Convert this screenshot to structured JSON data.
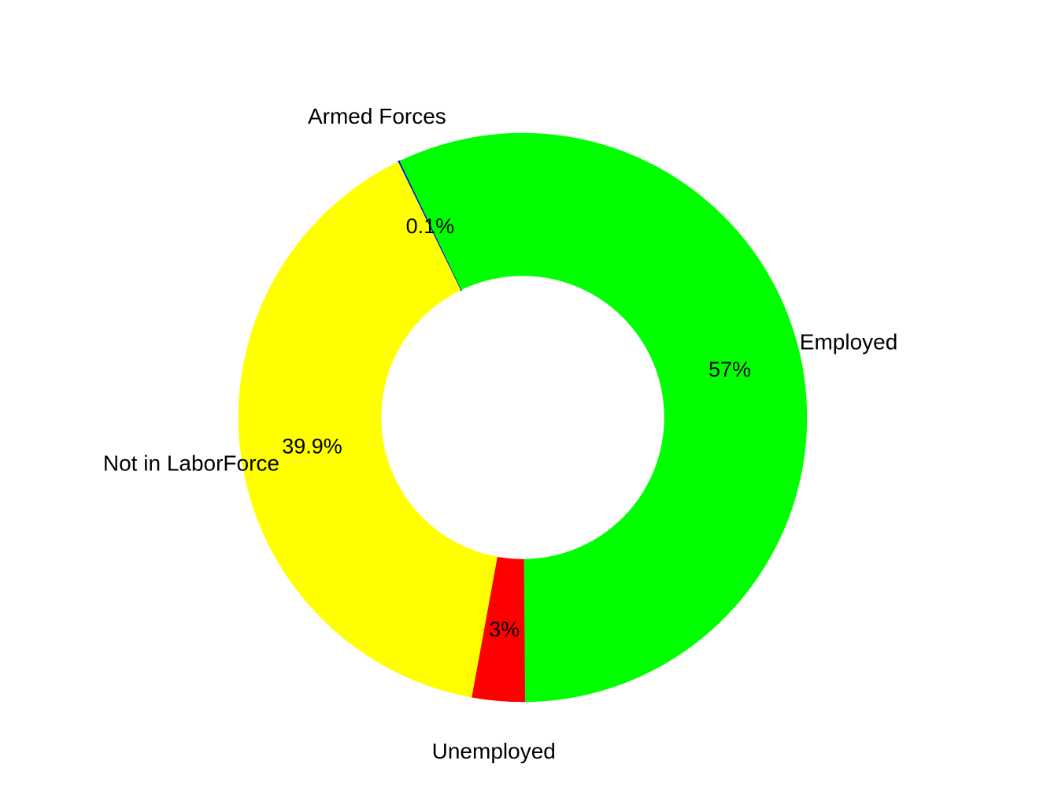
{
  "chart_data": {
    "type": "pie",
    "style": "donut",
    "title": "",
    "slices": [
      {
        "label": "Armed Forces",
        "value": 0.1,
        "value_label": "0.1%",
        "color": "#0000FF"
      },
      {
        "label": "Employed",
        "value": 57.0,
        "value_label": "57%",
        "color": "#00FF00"
      },
      {
        "label": "Unemployed",
        "value": 3.0,
        "value_label": "3%",
        "color": "#FF0000"
      },
      {
        "label": "Not in LaborForce",
        "value": 39.9,
        "value_label": "39.9%",
        "color": "#FFFF00"
      }
    ]
  }
}
